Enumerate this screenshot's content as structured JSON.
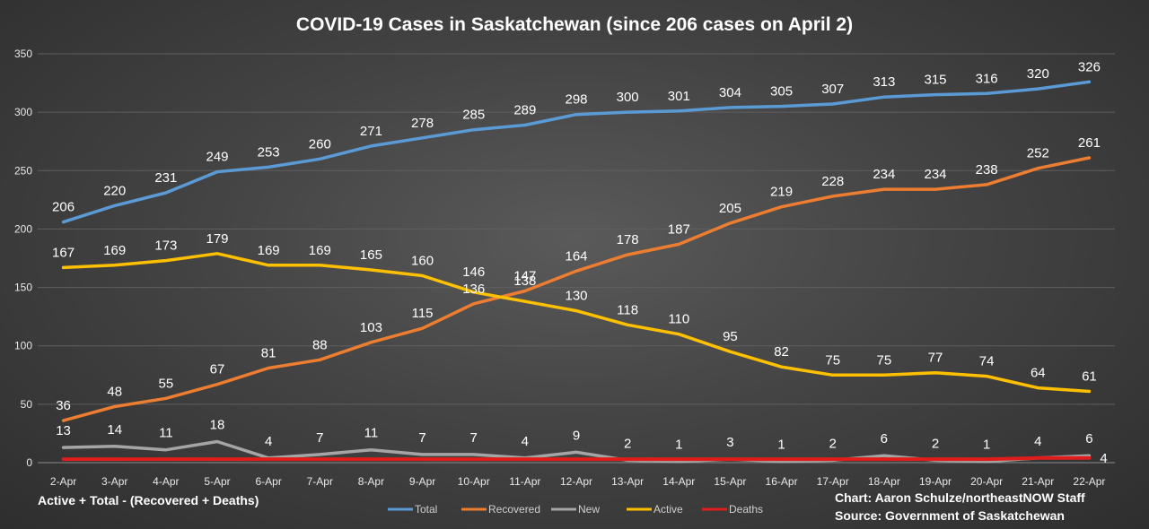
{
  "chart_data": {
    "type": "line",
    "title": "COVID-19 Cases in Saskatchewan (since 206 cases on April 2)",
    "categories": [
      "2-Apr",
      "3-Apr",
      "4-Apr",
      "5-Apr",
      "6-Apr",
      "7-Apr",
      "8-Apr",
      "9-Apr",
      "10-Apr",
      "11-Apr",
      "12-Apr",
      "13-Apr",
      "14-Apr",
      "15-Apr",
      "16-Apr",
      "17-Apr",
      "18-Apr",
      "19-Apr",
      "20-Apr",
      "21-Apr",
      "22-Apr"
    ],
    "ylim": [
      0,
      350
    ],
    "yticks": [
      0,
      50,
      100,
      150,
      200,
      250,
      300,
      350
    ],
    "grid": true,
    "legend_position": "bottom",
    "series": [
      {
        "name": "Total",
        "color": "#5b9bd5",
        "labels": true,
        "values": [
          206,
          220,
          231,
          249,
          253,
          260,
          271,
          278,
          285,
          289,
          298,
          300,
          301,
          304,
          305,
          307,
          313,
          315,
          316,
          320,
          326
        ]
      },
      {
        "name": "Recovered",
        "color": "#ed7d31",
        "labels": true,
        "values": [
          36,
          48,
          55,
          67,
          81,
          88,
          103,
          115,
          136,
          147,
          164,
          178,
          187,
          205,
          219,
          228,
          234,
          234,
          238,
          252,
          261
        ]
      },
      {
        "name": "New",
        "color": "#a5a5a5",
        "labels": true,
        "values": [
          13,
          14,
          11,
          18,
          4,
          7,
          11,
          7,
          7,
          4,
          9,
          2,
          1,
          3,
          1,
          2,
          6,
          2,
          1,
          4,
          6
        ]
      },
      {
        "name": "Active",
        "color": "#ffc000",
        "labels": true,
        "values": [
          167,
          169,
          173,
          179,
          169,
          169,
          165,
          160,
          146,
          138,
          130,
          118,
          110,
          95,
          82,
          75,
          75,
          77,
          74,
          64,
          61
        ]
      },
      {
        "name": "Deaths",
        "color": "#e01c1c",
        "labels": false,
        "last_label": "4",
        "values": [
          3,
          3,
          3,
          3,
          3,
          3,
          3,
          3,
          3,
          3,
          3,
          3,
          3,
          3,
          3,
          3,
          3,
          3,
          3,
          4,
          4
        ]
      }
    ]
  },
  "notes": {
    "formula": "Active + Total - (Recovered + Deaths)",
    "credit": "Chart: Aaron Schulze/northeastNOW Staff",
    "source": "Source: Government of Saskatchewan"
  }
}
